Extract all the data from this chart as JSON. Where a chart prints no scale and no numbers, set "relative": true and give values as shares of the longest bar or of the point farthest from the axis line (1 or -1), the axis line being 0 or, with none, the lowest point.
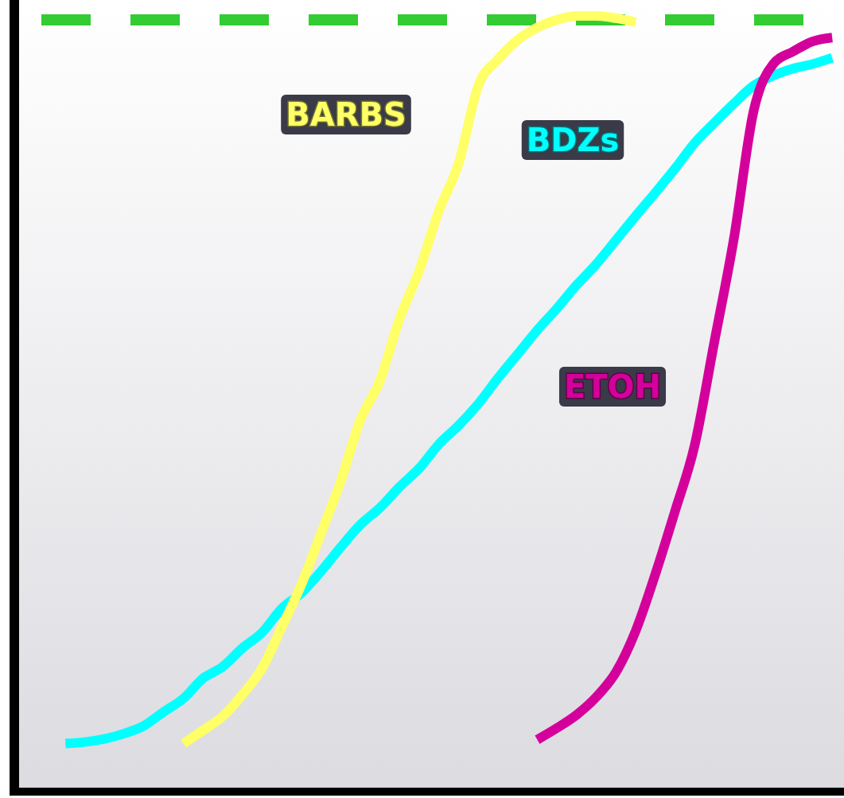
{
  "chart_data": {
    "type": "line",
    "relative": true,
    "line_style": "solid",
    "marker": "none",
    "legend": false,
    "categories": [
      null,
      null,
      null,
      null,
      null,
      null,
      null,
      null,
      null,
      null,
      null,
      null,
      null,
      null,
      null,
      null,
      null,
      null,
      null,
      null,
      null,
      null,
      null,
      null,
      null,
      null,
      null,
      null,
      null,
      null,
      null,
      null,
      null,
      null,
      null,
      null,
      null,
      null,
      null,
      null,
      null,
      null
    ],
    "series": [
      {
        "name": "BDZs",
        "color": "#00ffff",
        "values": [
          null,
          null,
          0.062,
          0.064,
          0.068,
          0.075,
          0.085,
          0.103,
          0.12,
          0.146,
          0.161,
          0.185,
          0.205,
          0.236,
          0.256,
          0.284,
          0.315,
          0.344,
          0.366,
          0.393,
          0.417,
          0.448,
          0.472,
          0.5,
          0.533,
          0.564,
          0.595,
          0.623,
          0.653,
          0.68,
          0.711,
          0.742,
          0.772,
          0.803,
          0.836,
          0.862,
          0.887,
          0.91,
          0.923,
          0.932,
          0.938,
          0.946
        ]
      },
      {
        "name": "BARBS",
        "color": "#ffff66",
        "values": [
          null,
          null,
          null,
          null,
          null,
          null,
          null,
          null,
          0.062,
          0.079,
          0.097,
          0.125,
          0.159,
          0.212,
          0.267,
          0.333,
          0.4,
          0.479,
          0.53,
          0.61,
          0.672,
          0.749,
          0.81,
          0.91,
          0.944,
          0.969,
          0.985,
          0.995,
          1,
          1,
          0.997,
          0.992,
          null,
          null,
          null,
          null,
          null,
          null,
          null,
          null,
          null,
          null
        ]
      },
      {
        "name": "ETOH",
        "color": "#d4009b",
        "values": [
          null,
          null,
          null,
          null,
          null,
          null,
          null,
          null,
          null,
          null,
          null,
          null,
          null,
          null,
          null,
          null,
          null,
          null,
          null,
          null,
          null,
          null,
          null,
          null,
          null,
          null,
          0.067,
          0.082,
          0.099,
          0.122,
          0.154,
          0.207,
          0.28,
          0.361,
          0.446,
          0.579,
          0.713,
          0.877,
          0.938,
          0.954,
          0.967,
          0.972
        ]
      }
    ],
    "ref_lines": [
      {
        "axis": "y",
        "value": 0.995,
        "color": "#33cc33",
        "line_style": "dashed"
      }
    ]
  }
}
